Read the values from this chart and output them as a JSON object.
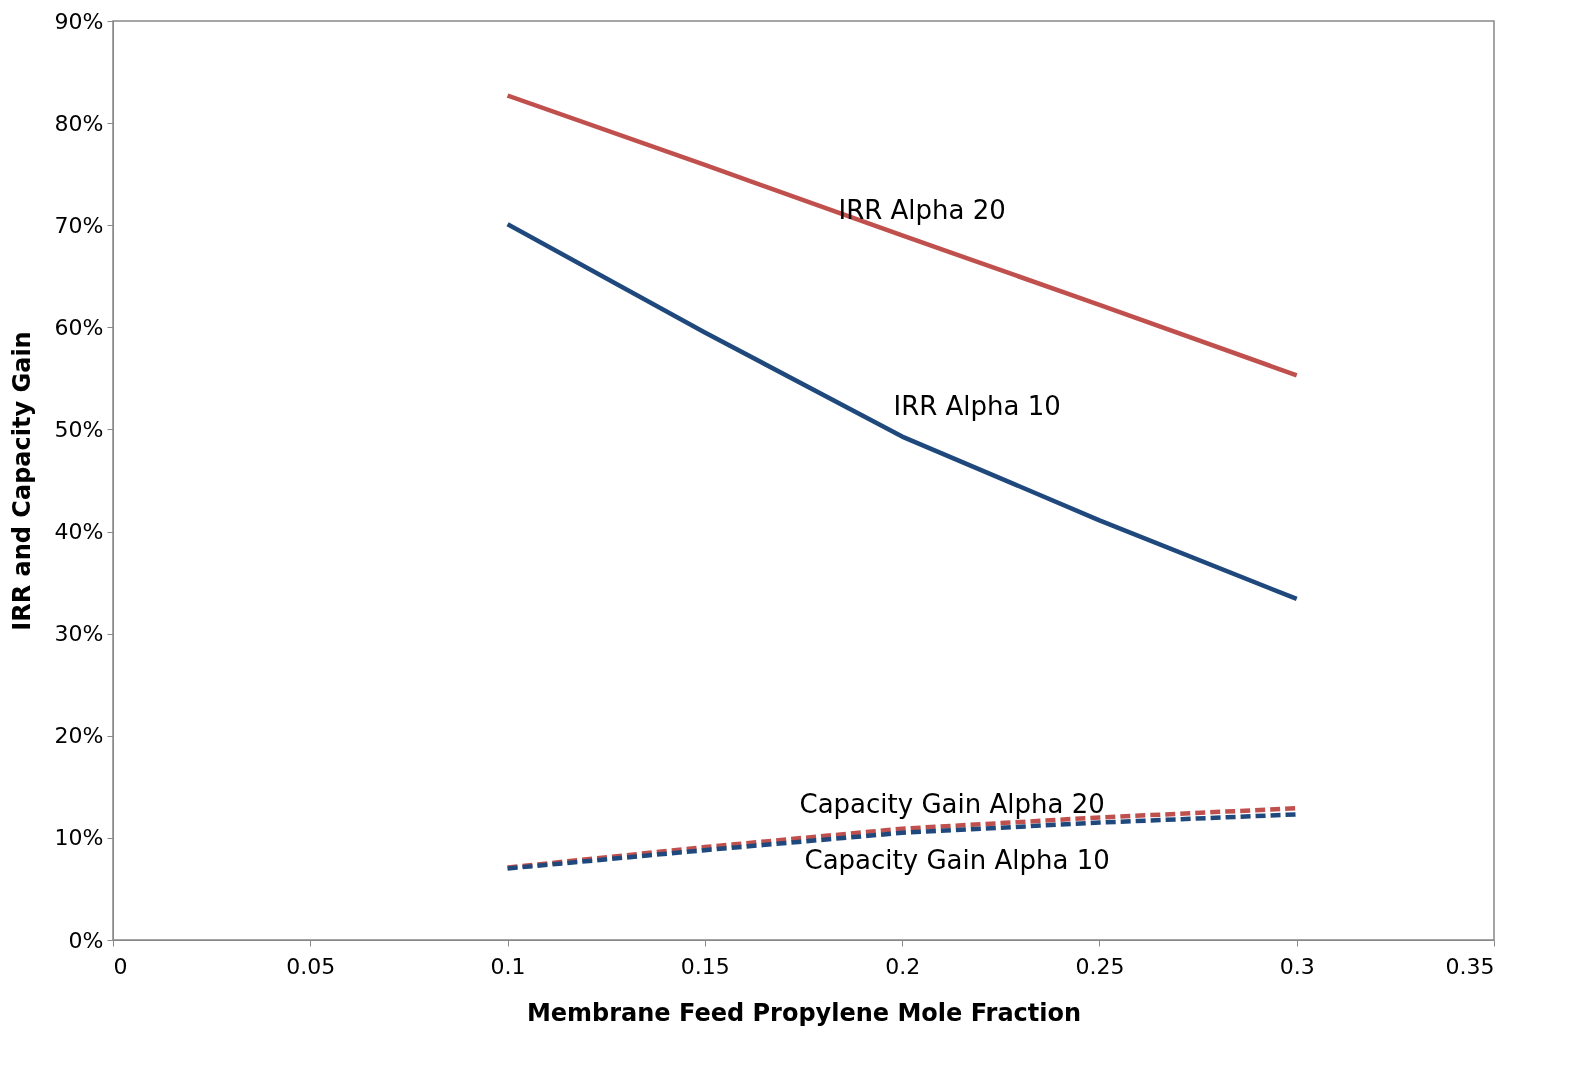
{
  "chart_data": {
    "type": "line",
    "xlabel": "Membrane Feed Propylene Mole Fraction",
    "ylabel": "IRR and Capacity Gain",
    "x": [
      0.1,
      0.15,
      0.2,
      0.25,
      0.3
    ],
    "series": [
      {
        "name": "IRR Alpha 20",
        "color": "#c0504d",
        "line_style": "solid",
        "values": [
          82.7,
          75.9,
          69.0,
          62.2,
          55.3
        ]
      },
      {
        "name": "IRR Alpha 10",
        "color": "#1f497d",
        "line_style": "solid",
        "values": [
          70.1,
          59.5,
          49.3,
          41.1,
          33.4
        ]
      },
      {
        "name": "Capacity Gain Alpha 20",
        "color": "#c0504d",
        "line_style": "dashed",
        "values": [
          7.1,
          9.1,
          10.9,
          12.0,
          12.9
        ]
      },
      {
        "name": "Capacity Gain Alpha 10",
        "color": "#1f497d",
        "line_style": "dashed",
        "values": [
          7.0,
          8.8,
          10.5,
          11.5,
          12.3
        ]
      }
    ],
    "xlim": [
      0,
      0.35
    ],
    "xticks": [
      0,
      0.05,
      0.1,
      0.15,
      0.2,
      0.25,
      0.3,
      0.35
    ],
    "ylim": [
      0,
      90
    ],
    "yticks": [
      {
        "value": 0,
        "label": "0%"
      },
      {
        "value": 10,
        "label": "10%"
      },
      {
        "value": 20,
        "label": "20%"
      },
      {
        "value": 30,
        "label": "30%"
      },
      {
        "value": 40,
        "label": "40%"
      },
      {
        "value": 50,
        "label": "50%"
      },
      {
        "value": 60,
        "label": "60%"
      },
      {
        "value": 70,
        "label": "70%"
      },
      {
        "value": 80,
        "label": "80%"
      },
      {
        "value": 90,
        "label": "90%"
      }
    ],
    "grid": false,
    "marker": "none"
  }
}
